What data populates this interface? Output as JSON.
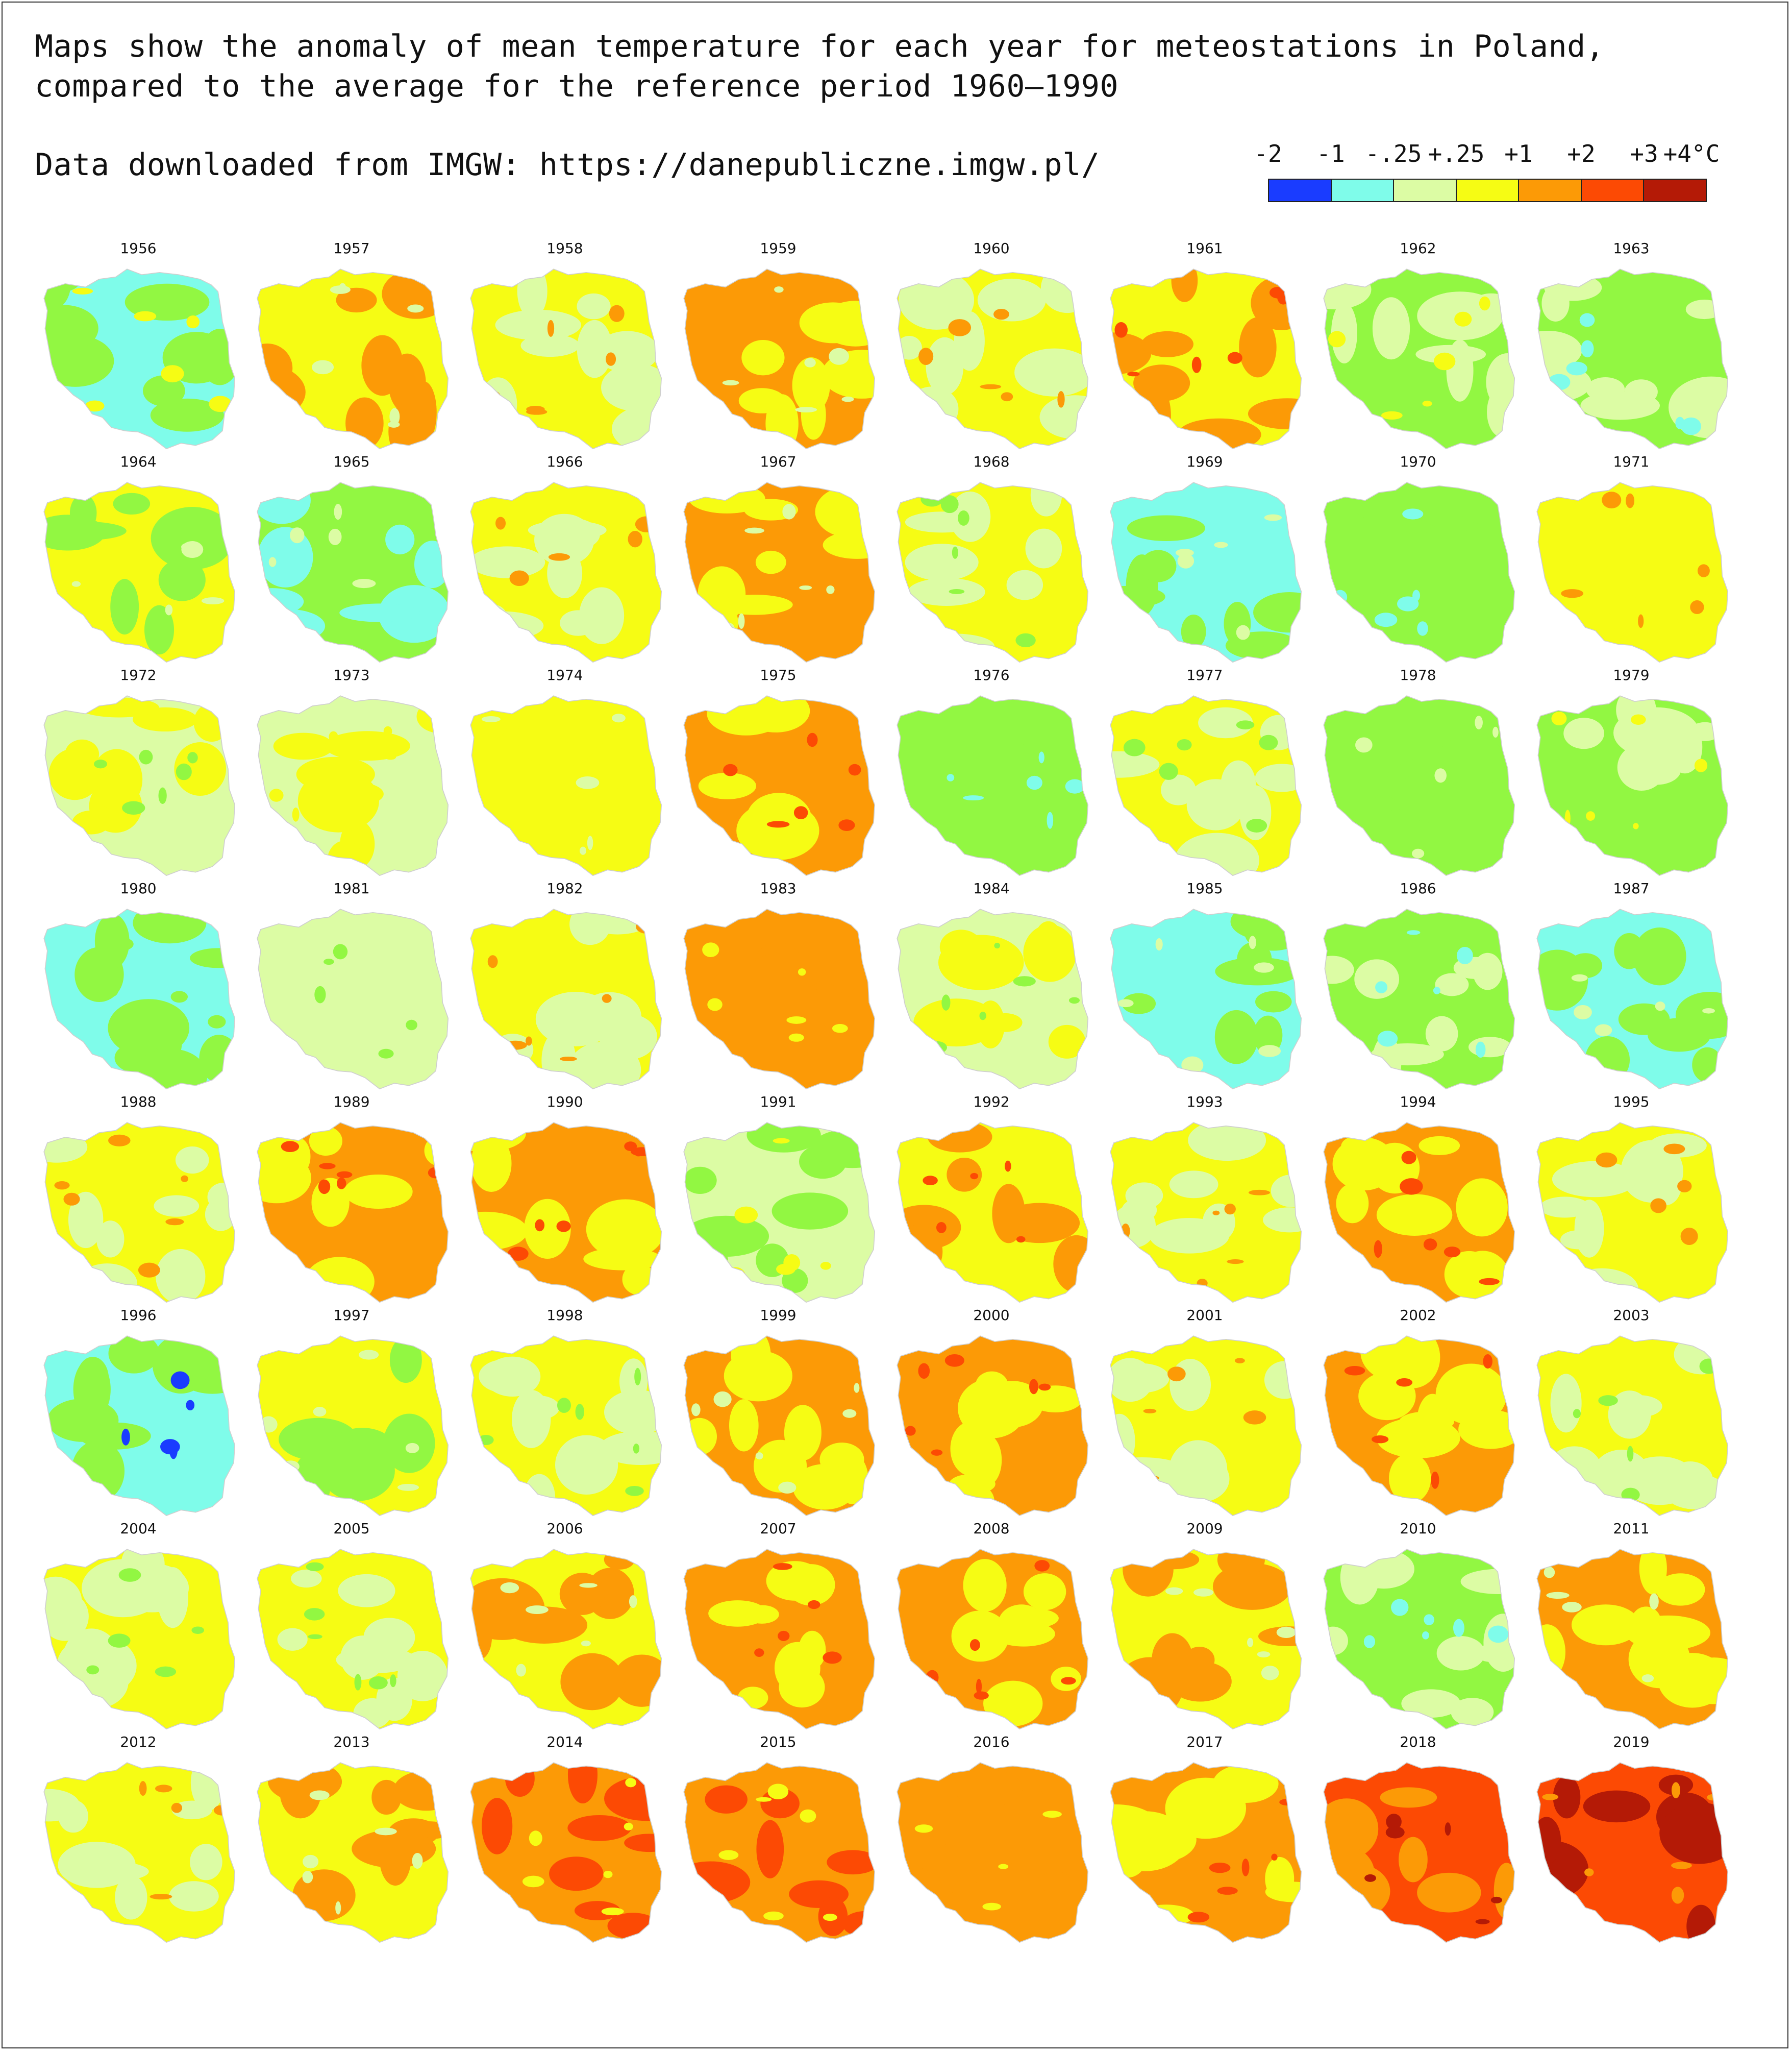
{
  "title_lines": [
    "Maps show the anomaly of mean temperature for each year for meteostations in Poland,",
    "compared to the average for the reference period 1960–1990"
  ],
  "source": "Data downloaded from IMGW: https://danepubliczne.imgw.pl/",
  "legend": {
    "ticks": [
      "-2",
      "-1",
      "-.25",
      "+.25",
      "+1",
      "+2",
      "+3",
      "+4°C"
    ],
    "colors": [
      "#1a3cff",
      "#7ffcea",
      "#dcfca4",
      "#f6fc14",
      "#fc9a06",
      "#fc4a04",
      "#b41a06"
    ]
  },
  "palette": {
    "cyan": "#7ffcea",
    "green": "#92f742",
    "lightgreen": "#dcfca4",
    "yellow": "#f6fc14",
    "orange": "#fc9a06",
    "red": "#fc4a04",
    "darkred": "#b41a06",
    "blue": "#1a3cff"
  },
  "maps": [
    {
      "year": "1956",
      "base": "cyan",
      "secondary": "green",
      "spots": "yellow"
    },
    {
      "year": "1957",
      "base": "yellow",
      "secondary": "orange",
      "spots": "lightgreen"
    },
    {
      "year": "1958",
      "base": "yellow",
      "secondary": "lightgreen",
      "spots": "orange"
    },
    {
      "year": "1959",
      "base": "orange",
      "secondary": "yellow",
      "spots": "lightgreen"
    },
    {
      "year": "1960",
      "base": "yellow",
      "secondary": "lightgreen",
      "spots": "orange"
    },
    {
      "year": "1961",
      "base": "yellow",
      "secondary": "orange",
      "spots": "red"
    },
    {
      "year": "1962",
      "base": "green",
      "secondary": "lightgreen",
      "spots": "yellow"
    },
    {
      "year": "1963",
      "base": "green",
      "secondary": "lightgreen",
      "spots": "cyan"
    },
    {
      "year": "1964",
      "base": "yellow",
      "secondary": "green",
      "spots": "lightgreen"
    },
    {
      "year": "1965",
      "base": "green",
      "secondary": "cyan",
      "spots": "lightgreen"
    },
    {
      "year": "1966",
      "base": "yellow",
      "secondary": "lightgreen",
      "spots": "orange"
    },
    {
      "year": "1967",
      "base": "orange",
      "secondary": "yellow",
      "spots": "lightgreen"
    },
    {
      "year": "1968",
      "base": "yellow",
      "secondary": "lightgreen",
      "spots": "green"
    },
    {
      "year": "1969",
      "base": "cyan",
      "secondary": "green",
      "spots": "lightgreen"
    },
    {
      "year": "1970",
      "base": "green",
      "secondary": "green",
      "spots": "cyan"
    },
    {
      "year": "1971",
      "base": "yellow",
      "secondary": "yellow",
      "spots": "orange"
    },
    {
      "year": "1972",
      "base": "lightgreen",
      "secondary": "yellow",
      "spots": "green"
    },
    {
      "year": "1973",
      "base": "lightgreen",
      "secondary": "yellow",
      "spots": "yellow"
    },
    {
      "year": "1974",
      "base": "yellow",
      "secondary": "yellow",
      "spots": "lightgreen"
    },
    {
      "year": "1975",
      "base": "orange",
      "secondary": "yellow",
      "spots": "red"
    },
    {
      "year": "1976",
      "base": "green",
      "secondary": "green",
      "spots": "cyan"
    },
    {
      "year": "1977",
      "base": "yellow",
      "secondary": "lightgreen",
      "spots": "green"
    },
    {
      "year": "1978",
      "base": "green",
      "secondary": "green",
      "spots": "lightgreen"
    },
    {
      "year": "1979",
      "base": "green",
      "secondary": "lightgreen",
      "spots": "yellow"
    },
    {
      "year": "1980",
      "base": "cyan",
      "secondary": "green",
      "spots": "green"
    },
    {
      "year": "1981",
      "base": "lightgreen",
      "secondary": "lightgreen",
      "spots": "green"
    },
    {
      "year": "1982",
      "base": "yellow",
      "secondary": "lightgreen",
      "spots": "orange"
    },
    {
      "year": "1983",
      "base": "orange",
      "secondary": "orange",
      "spots": "yellow"
    },
    {
      "year": "1984",
      "base": "lightgreen",
      "secondary": "yellow",
      "spots": "green"
    },
    {
      "year": "1985",
      "base": "cyan",
      "secondary": "green",
      "spots": "lightgreen"
    },
    {
      "year": "1986",
      "base": "green",
      "secondary": "lightgreen",
      "spots": "cyan"
    },
    {
      "year": "1987",
      "base": "cyan",
      "secondary": "green",
      "spots": "lightgreen"
    },
    {
      "year": "1988",
      "base": "yellow",
      "secondary": "lightgreen",
      "spots": "orange"
    },
    {
      "year": "1989",
      "base": "orange",
      "secondary": "yellow",
      "spots": "red"
    },
    {
      "year": "1990",
      "base": "orange",
      "secondary": "yellow",
      "spots": "red"
    },
    {
      "year": "1991",
      "base": "lightgreen",
      "secondary": "green",
      "spots": "yellow"
    },
    {
      "year": "1992",
      "base": "yellow",
      "secondary": "orange",
      "spots": "red"
    },
    {
      "year": "1993",
      "base": "yellow",
      "secondary": "lightgreen",
      "spots": "orange"
    },
    {
      "year": "1994",
      "base": "orange",
      "secondary": "yellow",
      "spots": "red"
    },
    {
      "year": "1995",
      "base": "yellow",
      "secondary": "lightgreen",
      "spots": "orange"
    },
    {
      "year": "1996",
      "base": "cyan",
      "secondary": "green",
      "spots": "blue"
    },
    {
      "year": "1997",
      "base": "yellow",
      "secondary": "green",
      "spots": "lightgreen"
    },
    {
      "year": "1998",
      "base": "yellow",
      "secondary": "lightgreen",
      "spots": "green"
    },
    {
      "year": "1999",
      "base": "orange",
      "secondary": "yellow",
      "spots": "lightgreen"
    },
    {
      "year": "2000",
      "base": "orange",
      "secondary": "yellow",
      "spots": "red"
    },
    {
      "year": "2001",
      "base": "yellow",
      "secondary": "lightgreen",
      "spots": "orange"
    },
    {
      "year": "2002",
      "base": "orange",
      "secondary": "yellow",
      "spots": "red"
    },
    {
      "year": "2003",
      "base": "yellow",
      "secondary": "lightgreen",
      "spots": "green"
    },
    {
      "year": "2004",
      "base": "yellow",
      "secondary": "lightgreen",
      "spots": "green"
    },
    {
      "year": "2005",
      "base": "yellow",
      "secondary": "lightgreen",
      "spots": "green"
    },
    {
      "year": "2006",
      "base": "yellow",
      "secondary": "orange",
      "spots": "lightgreen"
    },
    {
      "year": "2007",
      "base": "orange",
      "secondary": "yellow",
      "spots": "red"
    },
    {
      "year": "2008",
      "base": "orange",
      "secondary": "yellow",
      "spots": "red"
    },
    {
      "year": "2009",
      "base": "yellow",
      "secondary": "orange",
      "spots": "lightgreen"
    },
    {
      "year": "2010",
      "base": "green",
      "secondary": "lightgreen",
      "spots": "cyan"
    },
    {
      "year": "2011",
      "base": "orange",
      "secondary": "yellow",
      "spots": "lightgreen"
    },
    {
      "year": "2012",
      "base": "yellow",
      "secondary": "lightgreen",
      "spots": "orange"
    },
    {
      "year": "2013",
      "base": "yellow",
      "secondary": "orange",
      "spots": "lightgreen"
    },
    {
      "year": "2014",
      "base": "orange",
      "secondary": "red",
      "spots": "yellow"
    },
    {
      "year": "2015",
      "base": "orange",
      "secondary": "red",
      "spots": "yellow"
    },
    {
      "year": "2016",
      "base": "orange",
      "secondary": "orange",
      "spots": "yellow"
    },
    {
      "year": "2017",
      "base": "orange",
      "secondary": "yellow",
      "spots": "red"
    },
    {
      "year": "2018",
      "base": "red",
      "secondary": "orange",
      "spots": "darkred"
    },
    {
      "year": "2019",
      "base": "red",
      "secondary": "darkred",
      "spots": "orange"
    }
  ]
}
